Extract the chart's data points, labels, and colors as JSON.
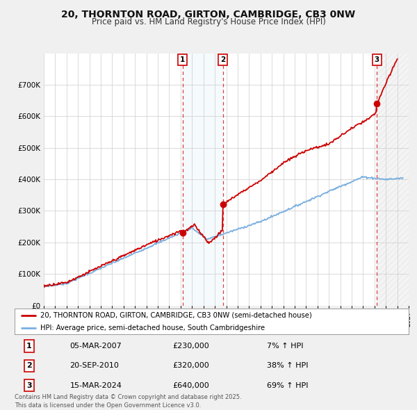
{
  "title": "20, THORNTON ROAD, GIRTON, CAMBRIDGE, CB3 0NW",
  "subtitle": "Price paid vs. HM Land Registry's House Price Index (HPI)",
  "title_fontsize": 10,
  "subtitle_fontsize": 8.5,
  "ylim": [
    0,
    800000
  ],
  "yticks": [
    0,
    100000,
    200000,
    300000,
    400000,
    500000,
    600000,
    700000
  ],
  "ytick_labels": [
    "£0",
    "£100K",
    "£200K",
    "£300K",
    "£400K",
    "£500K",
    "£600K",
    "£700K"
  ],
  "xlim_start": 1995,
  "xlim_end": 2027,
  "background_color": "#f0f0f0",
  "plot_bg_color": "#ffffff",
  "grid_color": "#cccccc",
  "hpi_line_color": "#7aafe0",
  "price_line_color": "#cc0000",
  "sale1_date": "05-MAR-2007",
  "sale1_price": 230000,
  "sale1_pct": "7%",
  "sale1_year": 2007.18,
  "sale2_date": "20-SEP-2010",
  "sale2_price": 320000,
  "sale2_pct": "38%",
  "sale2_year": 2010.72,
  "sale3_date": "15-MAR-2024",
  "sale3_price": 640000,
  "sale3_pct": "69%",
  "sale3_year": 2024.21,
  "legend_label_price": "20, THORNTON ROAD, GIRTON, CAMBRIDGE, CB3 0NW (semi-detached house)",
  "legend_label_hpi": "HPI: Average price, semi-detached house, South Cambridgeshire",
  "footnote": "Contains HM Land Registry data © Crown copyright and database right 2025.\nThis data is licensed under the Open Government Licence v3.0.",
  "hatch_start": 2024.21,
  "hatch_end": 2027
}
